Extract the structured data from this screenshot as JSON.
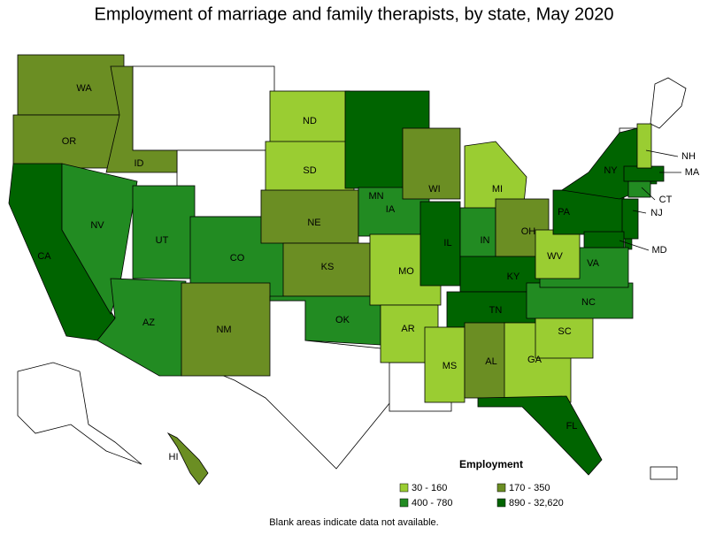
{
  "title": "Employment of marriage and family therapists, by state, May 2020",
  "legend": {
    "title": "Employment",
    "classes": [
      {
        "label": "30 - 160",
        "color": "#9acd32"
      },
      {
        "label": "170 - 350",
        "color": "#6b8e23"
      },
      {
        "label": "400 - 780",
        "color": "#228b22"
      },
      {
        "label": "890 - 32,620",
        "color": "#006400"
      }
    ]
  },
  "states": [
    {
      "label": "WA",
      "class": 1
    },
    {
      "label": "OR",
      "class": 1
    },
    {
      "label": "ID",
      "class": 1
    },
    {
      "label": "CA",
      "class": 3
    },
    {
      "label": "NV",
      "class": 2
    },
    {
      "label": "UT",
      "class": 2
    },
    {
      "label": "AZ",
      "class": 2
    },
    {
      "label": "CO",
      "class": 2
    },
    {
      "label": "NM",
      "class": 1
    },
    {
      "label": "ND",
      "class": 0
    },
    {
      "label": "SD",
      "class": 0
    },
    {
      "label": "NE",
      "class": 1
    },
    {
      "label": "KS",
      "class": 1
    },
    {
      "label": "OK",
      "class": 2
    },
    {
      "label": "MN",
      "class": 3
    },
    {
      "label": "IA",
      "class": 2
    },
    {
      "label": "MO",
      "class": 0
    },
    {
      "label": "AR",
      "class": 0
    },
    {
      "label": "WI",
      "class": 1
    },
    {
      "label": "IL",
      "class": 3
    },
    {
      "label": "MI",
      "class": 0
    },
    {
      "label": "IN",
      "class": 2
    },
    {
      "label": "OH",
      "class": 1
    },
    {
      "label": "KY",
      "class": 3
    },
    {
      "label": "TN",
      "class": 3
    },
    {
      "label": "MS",
      "class": 0
    },
    {
      "label": "AL",
      "class": 1
    },
    {
      "label": "GA",
      "class": 0
    },
    {
      "label": "FL",
      "class": 3
    },
    {
      "label": "SC",
      "class": 0
    },
    {
      "label": "NC",
      "class": 2
    },
    {
      "label": "VA",
      "class": 2
    },
    {
      "label": "WV",
      "class": 0
    },
    {
      "label": "PA",
      "class": 3
    },
    {
      "label": "NY",
      "class": 3
    },
    {
      "label": "NJ",
      "class": 3
    },
    {
      "label": "MD",
      "class": 3
    },
    {
      "label": "CT",
      "class": 2
    },
    {
      "label": "MA",
      "class": 3
    },
    {
      "label": "NH",
      "class": 0
    },
    {
      "label": "HI",
      "class": 1
    }
  ],
  "note": "Blank areas indicate data not available."
}
